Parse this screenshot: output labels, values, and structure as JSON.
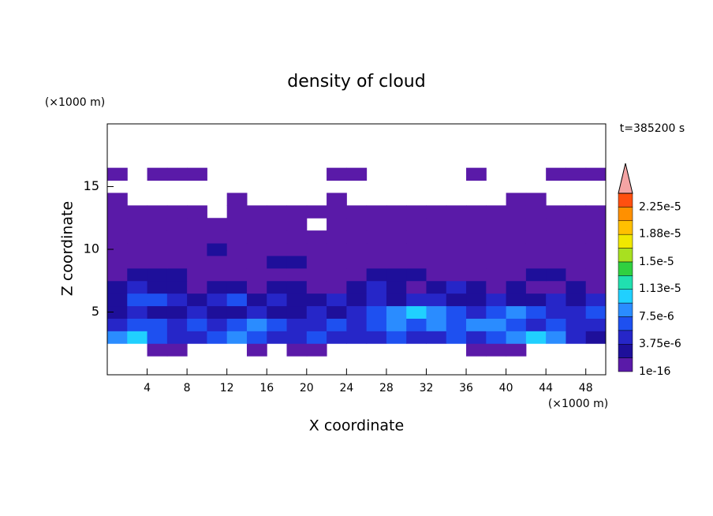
{
  "chart_data": {
    "type": "contour",
    "title": "density of cloud",
    "xlabel": "X coordinate",
    "ylabel": "Z coordinate",
    "xunit": "(×1000 m)",
    "yunit": "(×1000 m)",
    "annotation": "t=385200 s",
    "xlim": [
      0,
      50
    ],
    "ylim": [
      0,
      20
    ],
    "xticks": [
      4,
      8,
      12,
      16,
      20,
      24,
      28,
      32,
      36,
      40,
      44,
      48
    ],
    "yticks": [
      5,
      10,
      15
    ],
    "x": [
      1,
      3,
      5,
      7,
      9,
      11,
      13,
      15,
      17,
      19,
      21,
      23,
      25,
      27,
      29,
      31,
      33,
      35,
      37,
      39,
      41,
      43,
      45,
      47,
      49
    ],
    "z": [
      2,
      3,
      4,
      5,
      6,
      7,
      8,
      9,
      10,
      11,
      12,
      13,
      14,
      15,
      16
    ],
    "values": [
      [
        null,
        null,
        1e-07,
        1e-07,
        null,
        null,
        null,
        1e-07,
        null,
        1e-07,
        1e-07,
        null,
        null,
        null,
        null,
        null,
        null,
        null,
        1e-07,
        1e-07,
        1e-07,
        null,
        null,
        null,
        null
      ],
      [
        8e-06,
        1e-05,
        6e-06,
        4e-06,
        4e-06,
        6e-06,
        8e-06,
        6e-06,
        4e-06,
        4e-06,
        6e-06,
        4e-06,
        4e-06,
        4e-06,
        6e-06,
        4e-06,
        4e-06,
        6e-06,
        4e-06,
        6e-06,
        8e-06,
        1e-05,
        8e-06,
        4e-06,
        2e-06
      ],
      [
        4e-06,
        6e-06,
        6e-06,
        4e-06,
        6e-06,
        4e-06,
        6e-06,
        8e-06,
        6e-06,
        4e-06,
        4e-06,
        6e-06,
        4e-06,
        6e-06,
        8e-06,
        6e-06,
        8e-06,
        6e-06,
        8e-06,
        8e-06,
        6e-06,
        4e-06,
        6e-06,
        4e-06,
        4e-06
      ],
      [
        2e-06,
        4e-06,
        2e-06,
        2e-06,
        4e-06,
        2e-06,
        2e-06,
        4e-06,
        2e-06,
        2e-06,
        4e-06,
        2e-06,
        4e-06,
        6e-06,
        8e-06,
        1e-05,
        8e-06,
        6e-06,
        4e-06,
        6e-06,
        8e-06,
        6e-06,
        4e-06,
        4e-06,
        6e-06
      ],
      [
        2e-06,
        6e-06,
        6e-06,
        4e-06,
        2e-06,
        4e-06,
        6e-06,
        2e-06,
        4e-06,
        2e-06,
        2e-06,
        4e-06,
        2e-06,
        4e-06,
        2e-06,
        4e-06,
        4e-06,
        2e-06,
        2e-06,
        4e-06,
        2e-06,
        2e-06,
        4e-06,
        2e-06,
        4e-06
      ],
      [
        2e-06,
        4e-06,
        2e-06,
        2e-06,
        1e-07,
        2e-06,
        2e-06,
        1e-07,
        2e-06,
        2e-06,
        1e-07,
        1e-07,
        2e-06,
        4e-06,
        2e-06,
        1e-07,
        2e-06,
        4e-06,
        2e-06,
        1e-07,
        2e-06,
        1e-07,
        1e-07,
        2e-06,
        1e-07
      ],
      [
        1e-07,
        2e-06,
        2e-06,
        2e-06,
        1e-07,
        1e-07,
        1e-07,
        1e-07,
        1e-07,
        1e-07,
        1e-07,
        1e-07,
        1e-07,
        2e-06,
        2e-06,
        2e-06,
        1e-07,
        1e-07,
        1e-07,
        1e-07,
        1e-07,
        2e-06,
        2e-06,
        1e-07,
        1e-07
      ],
      [
        1e-07,
        1e-07,
        1e-07,
        1e-07,
        1e-07,
        1e-07,
        1e-07,
        1e-07,
        2e-06,
        2e-06,
        1e-07,
        1e-07,
        1e-07,
        1e-07,
        1e-07,
        1e-07,
        1e-07,
        1e-07,
        1e-07,
        1e-07,
        1e-07,
        1e-07,
        1e-07,
        1e-07,
        1e-07
      ],
      [
        1e-07,
        1e-07,
        1e-07,
        1e-07,
        1e-07,
        2e-06,
        1e-07,
        1e-07,
        1e-07,
        1e-07,
        1e-07,
        1e-07,
        1e-07,
        1e-07,
        1e-07,
        1e-07,
        1e-07,
        1e-07,
        1e-07,
        1e-07,
        1e-07,
        1e-07,
        1e-07,
        1e-07,
        1e-07
      ],
      [
        1e-07,
        1e-07,
        1e-07,
        1e-07,
        1e-07,
        1e-07,
        1e-07,
        1e-07,
        1e-07,
        1e-07,
        1e-07,
        1e-07,
        1e-07,
        1e-07,
        1e-07,
        1e-07,
        1e-07,
        1e-07,
        1e-07,
        1e-07,
        1e-07,
        1e-07,
        1e-07,
        1e-07,
        1e-07
      ],
      [
        1e-07,
        1e-07,
        1e-07,
        1e-07,
        1e-07,
        1e-07,
        1e-07,
        1e-07,
        1e-07,
        1e-07,
        null,
        1e-07,
        1e-07,
        1e-07,
        1e-07,
        1e-07,
        1e-07,
        1e-07,
        1e-07,
        1e-07,
        1e-07,
        1e-07,
        1e-07,
        1e-07,
        1e-07
      ],
      [
        1e-07,
        1e-07,
        1e-07,
        1e-07,
        1e-07,
        null,
        1e-07,
        1e-07,
        1e-07,
        1e-07,
        1e-07,
        1e-07,
        1e-07,
        1e-07,
        1e-07,
        1e-07,
        1e-07,
        1e-07,
        1e-07,
        1e-07,
        1e-07,
        1e-07,
        1e-07,
        1e-07,
        1e-07
      ],
      [
        1e-07,
        null,
        null,
        null,
        null,
        null,
        1e-07,
        null,
        null,
        null,
        null,
        1e-07,
        null,
        null,
        null,
        null,
        null,
        null,
        null,
        null,
        1e-07,
        1e-07,
        null,
        null,
        null
      ],
      [
        null,
        null,
        null,
        null,
        null,
        null,
        null,
        null,
        null,
        null,
        null,
        null,
        null,
        null,
        null,
        null,
        null,
        null,
        null,
        null,
        null,
        null,
        null,
        null,
        null
      ],
      [
        1e-07,
        null,
        1e-07,
        1e-07,
        1e-07,
        null,
        null,
        null,
        null,
        null,
        null,
        1e-07,
        1e-07,
        null,
        null,
        null,
        null,
        null,
        1e-07,
        null,
        null,
        null,
        1e-07,
        1e-07,
        1e-07
      ]
    ],
    "clim": [
      0,
      2.4375e-05
    ],
    "colors": [
      "#5a1aa8",
      "#1e0f9a",
      "#2626c8",
      "#1e50f0",
      "#2a8cff",
      "#20d0ff",
      "#20e0b0",
      "#30d040",
      "#a8e020",
      "#f0e800",
      "#ffc000",
      "#ff9000",
      "#ff5010"
    ],
    "extend_color": "#f4a4a4",
    "cticks": [
      {
        "value": 1e-16,
        "label": "1e-16"
      },
      {
        "value": 3.75e-06,
        "label": "3.75e-6"
      },
      {
        "value": 7.5e-06,
        "label": "7.5e-6"
      },
      {
        "value": 1.13e-05,
        "label": "1.13e-5"
      },
      {
        "value": 1.5e-05,
        "label": "1.5e-5"
      },
      {
        "value": 1.88e-05,
        "label": "1.88e-5"
      },
      {
        "value": 2.25e-05,
        "label": "2.25e-5"
      }
    ]
  }
}
